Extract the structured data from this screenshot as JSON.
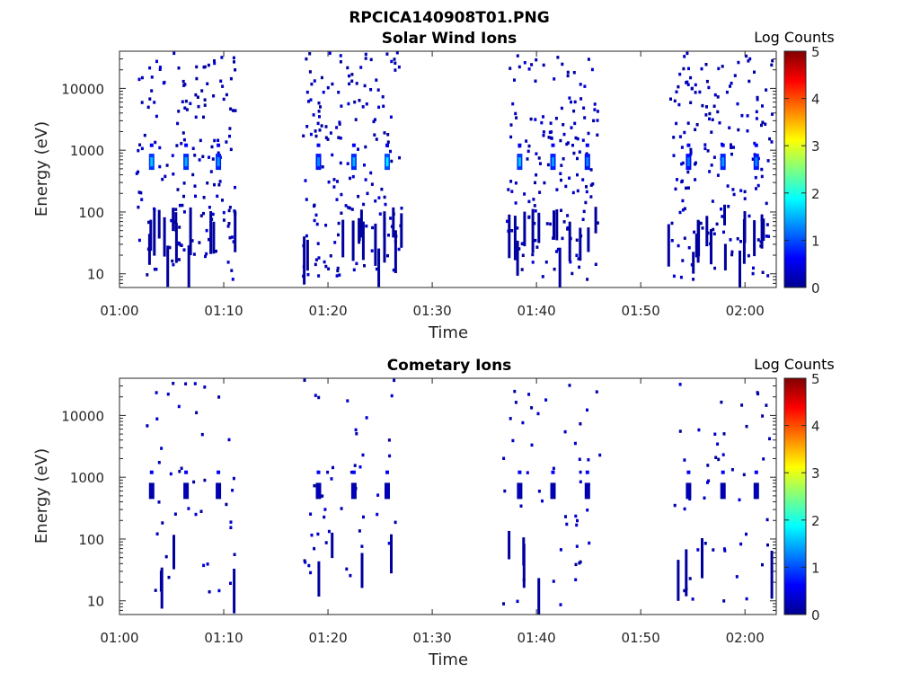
{
  "figure": {
    "title": "RPCICA140908T01.PNG",
    "colors": {
      "counts_low": "#00008f",
      "counts_mid": "#0a64ff",
      "counts_hi": "#4ad0ff"
    }
  },
  "chart_data": [
    {
      "type": "heatmap",
      "title": "Solar Wind Ions",
      "xlabel": "Time",
      "ylabel": "Energy (eV)",
      "x_ticks": [
        "01:00",
        "01:10",
        "01:20",
        "01:30",
        "01:40",
        "01:50",
        "02:00"
      ],
      "x_tick_minutes": [
        0,
        10,
        20,
        30,
        40,
        50,
        60
      ],
      "xlim_minutes": [
        0,
        63
      ],
      "y_scale": "log",
      "ylim": [
        6,
        40000
      ],
      "y_ticks": [
        "10",
        "100",
        "1000",
        "10000"
      ],
      "y_tick_values": [
        10,
        100,
        1000,
        10000
      ],
      "colorbar": {
        "label": "Log Counts",
        "range": [
          0,
          5
        ],
        "ticks": [
          "0",
          "1",
          "2",
          "3",
          "4",
          "5"
        ]
      },
      "scan_minutes": [
        3.0,
        6.3,
        9.4,
        19.0,
        22.4,
        25.6,
        38.3,
        41.5,
        44.8,
        54.5,
        57.8,
        61.0
      ],
      "burst_minutes": [
        [
          1.5,
          11
        ],
        [
          17.5,
          27
        ],
        [
          37,
          46
        ],
        [
          52.5,
          62.5
        ]
      ],
      "peak_energy_eV": 650,
      "peak_log_counts": [
        1.6,
        1.5,
        1.4,
        1.3,
        1.5,
        1.8,
        1.6,
        1.4,
        1.3,
        1.2,
        1.4,
        1.3
      ]
    },
    {
      "type": "heatmap",
      "title": "Cometary Ions",
      "xlabel": "Time",
      "ylabel": "Energy (eV)",
      "x_ticks": [
        "01:00",
        "01:10",
        "01:20",
        "01:30",
        "01:40",
        "01:50",
        "02:00"
      ],
      "x_tick_minutes": [
        0,
        10,
        20,
        30,
        40,
        50,
        60
      ],
      "xlim_minutes": [
        0,
        63
      ],
      "y_scale": "log",
      "ylim": [
        6,
        40000
      ],
      "y_ticks": [
        "10",
        "100",
        "1000",
        "10000"
      ],
      "y_tick_values": [
        10,
        100,
        1000,
        10000
      ],
      "colorbar": {
        "label": "Log Counts",
        "range": [
          0,
          5
        ],
        "ticks": [
          "0",
          "1",
          "2",
          "3",
          "4",
          "5"
        ]
      },
      "scan_minutes": [
        3.0,
        6.3,
        9.4,
        19.0,
        22.4,
        25.6,
        38.3,
        41.5,
        44.8,
        54.5,
        57.8,
        61.0
      ],
      "burst_minutes": [
        [
          2.5,
          11
        ],
        [
          17.5,
          26.5
        ],
        [
          36.5,
          46
        ],
        [
          53,
          62.5
        ]
      ],
      "peak_energy_eV": 600,
      "peak_log_counts": [
        0.3,
        0.3,
        0.3,
        0.3,
        0.3,
        0.3,
        0.3,
        0.3,
        0.3,
        0.3,
        0.3,
        0.3
      ]
    }
  ]
}
